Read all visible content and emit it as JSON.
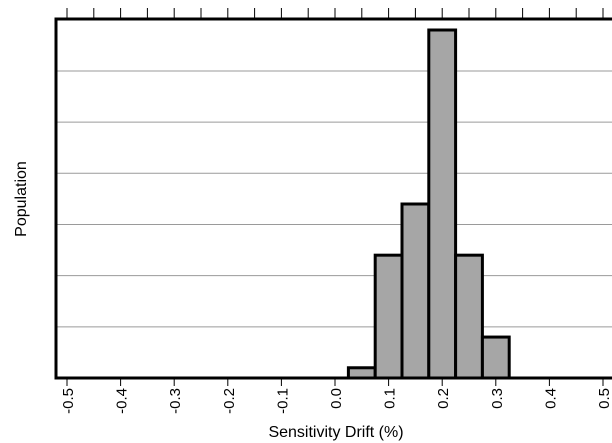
{
  "chart_data": {
    "type": "bar",
    "title": "",
    "xlabel": "Sensitivity Drift (%)",
    "ylabel": "Population",
    "xlim": [
      -0.52,
      0.52
    ],
    "ylim": [
      0,
      68
    ],
    "grid": "horizontal",
    "ytick_values": [
      10,
      20,
      30,
      40,
      50,
      60
    ],
    "xtick_values": [
      -0.5,
      -0.4,
      -0.3,
      -0.2,
      -0.1,
      0.0,
      0.1,
      0.2,
      0.3,
      0.4,
      0.5
    ],
    "xtick_labels": [
      "-0.5",
      "-0.4",
      "-0.3",
      "-0.2",
      "-0.1",
      "0.0",
      "0.1",
      "0.2",
      "0.3",
      "0.4",
      "0.5"
    ],
    "bin_width": 0.05,
    "bins": [
      {
        "x0": 0.025,
        "x1": 0.075,
        "value": 2
      },
      {
        "x0": 0.075,
        "x1": 0.125,
        "value": 24
      },
      {
        "x0": 0.125,
        "x1": 0.175,
        "value": 34
      },
      {
        "x0": 0.175,
        "x1": 0.225,
        "value": 68
      },
      {
        "x0": 0.225,
        "x1": 0.275,
        "value": 24
      },
      {
        "x0": 0.275,
        "x1": 0.325,
        "value": 8
      }
    ],
    "colors": {
      "bar_fill": "#a6a6a6",
      "bar_edge": "#000000",
      "grid": "#9a9a9a"
    }
  }
}
